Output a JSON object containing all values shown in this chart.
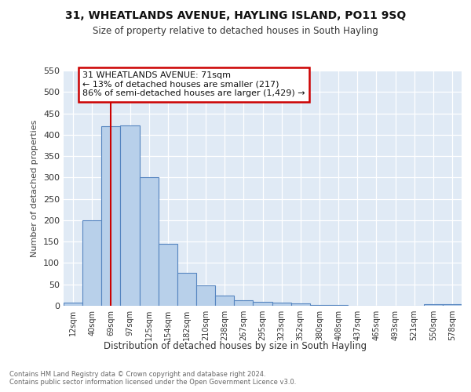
{
  "title1": "31, WHEATLANDS AVENUE, HAYLING ISLAND, PO11 9SQ",
  "title2": "Size of property relative to detached houses in South Hayling",
  "xlabel": "Distribution of detached houses by size in South Hayling",
  "ylabel": "Number of detached properties",
  "categories": [
    "12sqm",
    "40sqm",
    "69sqm",
    "97sqm",
    "125sqm",
    "154sqm",
    "182sqm",
    "210sqm",
    "238sqm",
    "267sqm",
    "295sqm",
    "323sqm",
    "352sqm",
    "380sqm",
    "408sqm",
    "437sqm",
    "465sqm",
    "493sqm",
    "521sqm",
    "550sqm",
    "578sqm"
  ],
  "values": [
    8,
    200,
    420,
    422,
    300,
    145,
    77,
    48,
    24,
    12,
    9,
    8,
    5,
    2,
    1,
    0,
    0,
    0,
    0,
    3,
    3
  ],
  "bar_color": "#b8d0ea",
  "bar_edge_color": "#5585c0",
  "vline_x": 2.0,
  "vline_color": "#cc0000",
  "box_text": "31 WHEATLANDS AVENUE: 71sqm\n← 13% of detached houses are smaller (217)\n86% of semi-detached houses are larger (1,429) →",
  "ylim": [
    0,
    550
  ],
  "yticks": [
    0,
    50,
    100,
    150,
    200,
    250,
    300,
    350,
    400,
    450,
    500,
    550
  ],
  "footnote": "Contains HM Land Registry data © Crown copyright and database right 2024.\nContains public sector information licensed under the Open Government Licence v3.0.",
  "background_color": "#ffffff",
  "plot_bg_color": "#e0eaf5"
}
